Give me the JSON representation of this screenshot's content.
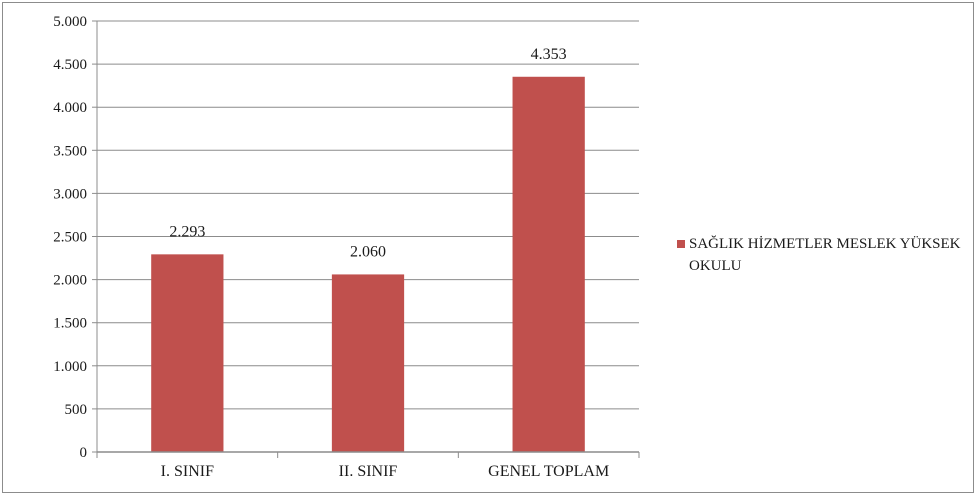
{
  "chart_data": {
    "type": "bar",
    "categories": [
      "I. SINIF",
      "II. SINIF",
      "GENEL TOPLAM"
    ],
    "series": [
      {
        "name": "SAĞLIK HİZMETLER MESLEK YÜKSEK OKULU",
        "values": [
          2293,
          2060,
          4353
        ],
        "color": "#c0504d"
      }
    ],
    "data_labels": [
      "2.293",
      "2.060",
      "4.353"
    ],
    "y_ticks": [
      0,
      500,
      1000,
      1500,
      2000,
      2500,
      3000,
      3500,
      4000,
      4500,
      5000
    ],
    "y_tick_labels": [
      "0",
      "500",
      "1.000",
      "1.500",
      "2.000",
      "2.500",
      "3.000",
      "3.500",
      "4.000",
      "4.500",
      "5.000"
    ],
    "ylim": [
      0,
      5000
    ],
    "grid": true,
    "legend_position": "right",
    "colors": {
      "bar": "#c0504d",
      "grid": "#8c8c8c",
      "axis": "#8c8c8c"
    }
  }
}
